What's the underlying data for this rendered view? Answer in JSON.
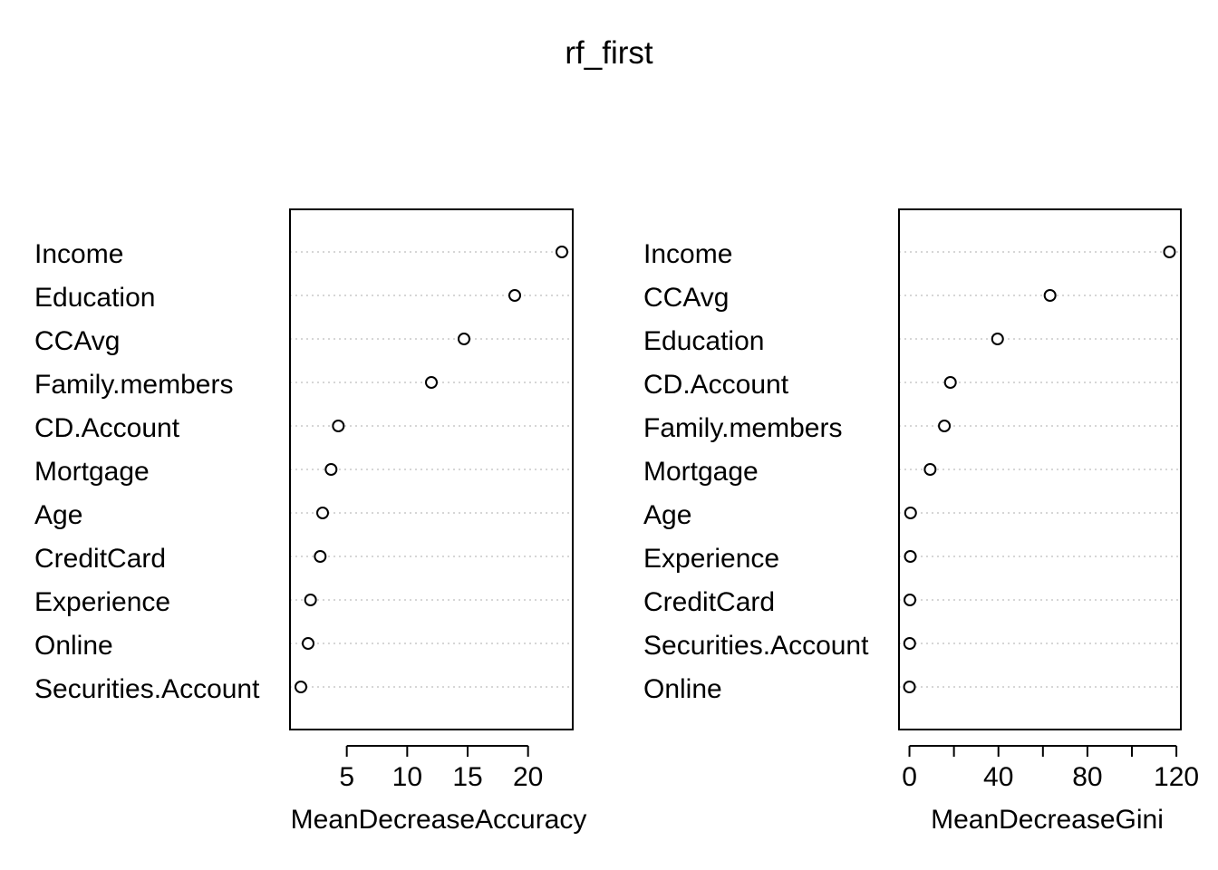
{
  "chart_data": {
    "type": "scatter",
    "title": "rf_first",
    "panels": [
      {
        "xlabel": "MeanDecreaseAccuracy",
        "xlim": [
          0.3,
          23.7
        ],
        "xticks": [
          5,
          10,
          15,
          20
        ],
        "grid": true,
        "categories": [
          "Income",
          "Education",
          "CCAvg",
          "Family.members",
          "CD.Account",
          "Mortgage",
          "Age",
          "CreditCard",
          "Experience",
          "Online",
          "Securities.Account"
        ],
        "values": [
          22.8,
          18.9,
          14.7,
          12.0,
          4.3,
          3.7,
          3.0,
          2.8,
          2.0,
          1.8,
          1.2
        ]
      },
      {
        "xlabel": "MeanDecreaseGini",
        "xlim": [
          -4.7,
          122.0
        ],
        "xticks": [
          0,
          40,
          80,
          120
        ],
        "minor_ticks": [
          20,
          60,
          100
        ],
        "grid": true,
        "categories": [
          "Income",
          "CCAvg",
          "Education",
          "CD.Account",
          "Family.members",
          "Mortgage",
          "Age",
          "Experience",
          "CreditCard",
          "Securities.Account",
          "Online"
        ],
        "values": [
          116.9,
          63.2,
          39.6,
          18.4,
          15.7,
          9.3,
          0.5,
          0.4,
          0.2,
          0.1,
          0.0
        ]
      }
    ]
  }
}
